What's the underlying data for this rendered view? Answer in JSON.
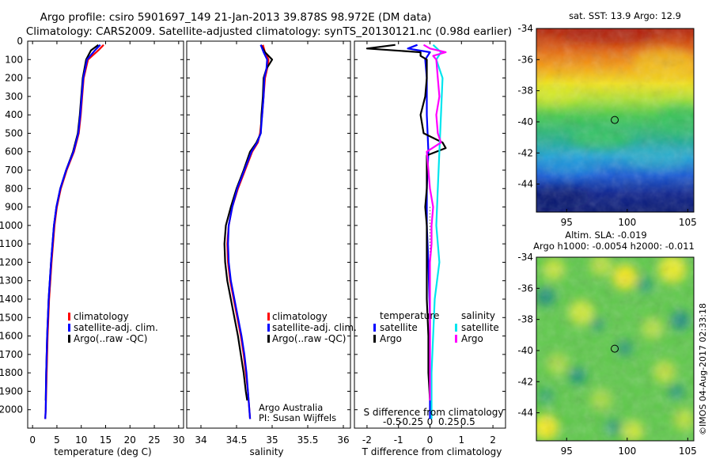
{
  "header": {
    "line1": "Argo profile: csiro 5901697_149 21-Jan-2013 39.878S 98.972E (DM data)",
    "line2": "Climatology: CARS2009. Satellite-adjusted climatology: synTS_20130121.nc (0.98d earlier)"
  },
  "credit": "©IMOS 04-Aug-2017 02:33:18",
  "colors": {
    "climatology": "#ff0000",
    "satellite": "#0000ff",
    "argo": "#000000",
    "sal_satellite": "#00e5ee",
    "sal_argo": "#ff00ff"
  },
  "chart_data": [
    {
      "type": "line",
      "id": "temperature",
      "xlabel": "temperature (deg C)",
      "ylabel": "",
      "xlim": [
        -1,
        31
      ],
      "ylim": [
        2100,
        0
      ],
      "xticks": [
        0,
        5,
        10,
        15,
        20,
        25,
        30
      ],
      "yticks": [
        0,
        100,
        200,
        300,
        400,
        500,
        600,
        700,
        800,
        900,
        1000,
        1100,
        1200,
        1300,
        1400,
        1500,
        1600,
        1700,
        1800,
        1900,
        2000
      ],
      "legend": [
        "climatology",
        "satellite-adj. clim.",
        "Argo(..raw -QC)"
      ],
      "legend_position": "lower-right",
      "series": [
        {
          "name": "climatology",
          "color": "climatology",
          "depth": [
            20,
            50,
            100,
            200,
            300,
            400,
            500,
            600,
            700,
            800,
            900,
            1000,
            1200,
            1400,
            1600,
            1800,
            2000,
            2050
          ],
          "values": [
            14.6,
            13.5,
            11.4,
            10.5,
            10.2,
            9.9,
            9.5,
            8.5,
            7.0,
            5.8,
            5.0,
            4.5,
            3.9,
            3.4,
            3.1,
            2.9,
            2.7,
            2.6
          ]
        },
        {
          "name": "Argo(..raw -QC)",
          "color": "argo",
          "depth": [
            20,
            50,
            100,
            200,
            300,
            400,
            500,
            600,
            700,
            800,
            900,
            1000,
            1200,
            1400,
            1600,
            1800,
            1950
          ],
          "values": [
            13.5,
            12.0,
            11.0,
            10.3,
            10.0,
            9.7,
            9.3,
            8.3,
            6.9,
            5.7,
            4.9,
            4.4,
            3.8,
            3.3,
            3.0,
            2.8,
            2.7
          ]
        },
        {
          "name": "satellite-adj. clim.",
          "color": "satellite",
          "depth": [
            20,
            50,
            100,
            200,
            300,
            400,
            500,
            600,
            700,
            800,
            900,
            1000,
            1200,
            1400,
            1600,
            1800,
            2000,
            2050
          ],
          "values": [
            13.9,
            12.8,
            11.2,
            10.4,
            10.1,
            9.8,
            9.4,
            8.4,
            6.9,
            5.7,
            4.9,
            4.4,
            3.8,
            3.3,
            3.0,
            2.8,
            2.7,
            2.6
          ]
        }
      ]
    },
    {
      "type": "line",
      "id": "salinity",
      "xlabel": "salinity",
      "xlim": [
        33.8,
        36.1
      ],
      "ylim": [
        2100,
        0
      ],
      "xticks": [
        34,
        34.5,
        35,
        35.5,
        36
      ],
      "legend": [
        "climatology",
        "satellite-adj. clim.",
        "Argo(..raw -QC)"
      ],
      "legend_position": "lower-right",
      "annotation": [
        "Argo Australia",
        "PI: Susan Wijffels"
      ],
      "series": [
        {
          "name": "climatology",
          "color": "climatology",
          "depth": [
            20,
            60,
            100,
            150,
            200,
            300,
            400,
            500,
            550,
            600,
            700,
            800,
            900,
            1000,
            1100,
            1200,
            1300,
            1400,
            1500,
            1600,
            1700,
            1800,
            1900,
            2000,
            2050
          ],
          "values": [
            34.87,
            34.9,
            34.95,
            34.93,
            34.9,
            34.88,
            34.86,
            34.83,
            34.8,
            34.72,
            34.62,
            34.52,
            34.44,
            34.39,
            34.37,
            34.38,
            34.41,
            34.46,
            34.51,
            34.56,
            34.6,
            34.63,
            34.66,
            34.68,
            34.69
          ]
        },
        {
          "name": "Argo(..raw -QC)",
          "color": "argo",
          "depth": [
            20,
            60,
            100,
            150,
            200,
            300,
            400,
            500,
            550,
            600,
            700,
            800,
            900,
            1000,
            1100,
            1200,
            1300,
            1400,
            1500,
            1600,
            1700,
            1800,
            1900,
            1950
          ],
          "values": [
            34.84,
            34.9,
            35.0,
            34.92,
            34.88,
            34.87,
            34.85,
            34.84,
            34.78,
            34.69,
            34.6,
            34.5,
            34.42,
            34.35,
            34.33,
            34.34,
            34.37,
            34.42,
            34.47,
            34.52,
            34.56,
            34.6,
            34.63,
            34.65
          ]
        },
        {
          "name": "satellite-adj. clim.",
          "color": "satellite",
          "depth": [
            20,
            60,
            100,
            150,
            200,
            300,
            400,
            500,
            550,
            600,
            700,
            800,
            900,
            1000,
            1100,
            1200,
            1300,
            1400,
            1500,
            1600,
            1700,
            1800,
            1900,
            2000,
            2050
          ],
          "values": [
            34.84,
            34.88,
            34.93,
            34.92,
            34.89,
            34.88,
            34.86,
            34.84,
            34.79,
            34.71,
            34.61,
            34.51,
            34.44,
            34.39,
            34.38,
            34.39,
            34.42,
            34.47,
            34.52,
            34.57,
            34.61,
            34.64,
            34.66,
            34.68,
            34.69
          ]
        }
      ]
    },
    {
      "type": "line",
      "id": "difference",
      "xlabel": "T difference from climatology",
      "top_label": "S difference from climatology",
      "xlim": [
        -2.4,
        2.4
      ],
      "ylim": [
        2100,
        0
      ],
      "xticks": [
        -2,
        -1,
        0,
        1,
        2
      ],
      "xticklabels": [
        "-2",
        "-1",
        "0",
        "1",
        "2"
      ],
      "top_ticks": [
        -1.2,
        -0.6,
        0,
        0.6,
        1.2
      ],
      "top_ticklabels": [
        "-0.5",
        "-0.25",
        "0",
        "0.25",
        "0.5"
      ],
      "legend_groups": [
        {
          "title": "temperature",
          "items": [
            "satellite",
            "Argo"
          ]
        },
        {
          "title": "salinity",
          "items": [
            "satellite",
            "Argo"
          ]
        }
      ],
      "series": [
        {
          "name": "temperature satellite",
          "color": "satellite",
          "depth": [
            20,
            40,
            60,
            100,
            200,
            400,
            600,
            800,
            1000,
            1200,
            1500,
            1800,
            2050
          ],
          "values": [
            -0.4,
            -0.7,
            0.0,
            -0.15,
            -0.1,
            -0.1,
            -0.05,
            -0.1,
            -0.1,
            -0.05,
            0.0,
            0.0,
            0.0
          ]
        },
        {
          "name": "temperature Argo",
          "color": "argo",
          "depth": [
            20,
            40,
            60,
            80,
            100,
            200,
            300,
            400,
            500,
            550,
            580,
            620,
            700,
            800,
            900,
            1000,
            1200,
            1400,
            1600,
            1800,
            1950
          ],
          "values": [
            -1.1,
            -2.0,
            -0.3,
            -0.3,
            -0.1,
            -0.1,
            -0.15,
            -0.3,
            -0.2,
            0.4,
            0.5,
            -0.1,
            -0.1,
            -0.1,
            -0.15,
            -0.1,
            -0.1,
            -0.1,
            -0.05,
            -0.05,
            0.0
          ]
        },
        {
          "name": "salinity satellite",
          "color": "sal_satellite",
          "depth": [
            20,
            60,
            100,
            200,
            400,
            600,
            800,
            1000,
            1200,
            1400,
            1600,
            1800,
            2000,
            2050
          ],
          "values": [
            0.1,
            0.35,
            0.2,
            0.4,
            0.35,
            0.3,
            0.25,
            0.2,
            0.3,
            0.15,
            0.1,
            0.05,
            0.05,
            0.05
          ]
        },
        {
          "name": "salinity Argo",
          "color": "sal_argo",
          "depth": [
            20,
            40,
            60,
            80,
            100,
            200,
            300,
            400,
            500,
            550,
            600,
            700,
            800,
            900,
            1000,
            1100,
            1200,
            1400,
            1600,
            1800,
            1950
          ],
          "values": [
            -0.2,
            0.0,
            0.5,
            0.1,
            0.2,
            0.25,
            0.3,
            0.2,
            0.25,
            0.35,
            -0.1,
            -0.05,
            0.0,
            0.1,
            0.05,
            0.05,
            0.0,
            0.0,
            0.0,
            0.0,
            0.0
          ]
        }
      ]
    },
    {
      "type": "heatmap",
      "id": "sst_map",
      "title": "sat. SST: 13.9 Argo: 12.9",
      "xlim": [
        92.5,
        105.5
      ],
      "ylim": [
        -45.8,
        -34
      ],
      "xticks": [
        95,
        100,
        105
      ],
      "yticks": [
        -34,
        -36,
        -38,
        -40,
        -42,
        -44
      ],
      "marker": {
        "lon": 98.97,
        "lat": -39.88
      }
    },
    {
      "type": "heatmap",
      "id": "sla_map",
      "title": "Altim. SLA: -0.019",
      "subtitle": "Argo h1000: -0.0054 h2000: -0.011",
      "xlim": [
        92.5,
        105.5
      ],
      "ylim": [
        -45.8,
        -34
      ],
      "xticks": [
        95,
        100,
        105
      ],
      "yticks": [
        -34,
        -36,
        -38,
        -40,
        -42,
        -44
      ],
      "marker": {
        "lon": 98.97,
        "lat": -39.88
      }
    }
  ]
}
